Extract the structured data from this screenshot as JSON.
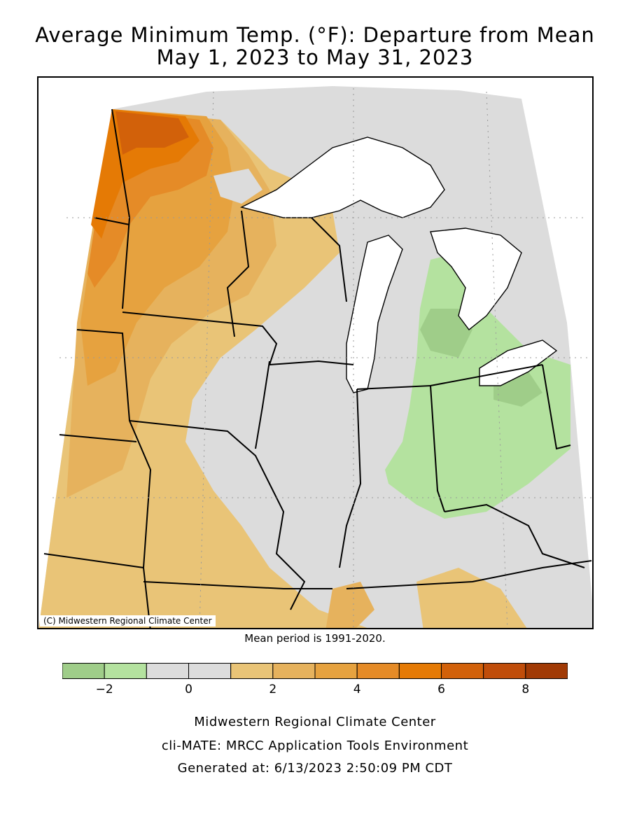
{
  "title_line1": "Average Minimum Temp. (°F): Departure from Mean",
  "title_line2": "May 1, 2023 to May 31, 2023",
  "copyright": "(C) Midwestern Regional Climate Center",
  "mean_period": "Mean period is 1991-2020.",
  "legend": {
    "bins": [
      {
        "from": -3,
        "to": -2,
        "color": "#9fcd89"
      },
      {
        "from": -2,
        "to": -1,
        "color": "#b4e29f"
      },
      {
        "from": -1,
        "to": 0,
        "color": "#dcdcdc"
      },
      {
        "from": 0,
        "to": 1,
        "color": "#dcdcdc"
      },
      {
        "from": 1,
        "to": 2,
        "color": "#e9c477"
      },
      {
        "from": 2,
        "to": 3,
        "color": "#e6b25d"
      },
      {
        "from": 3,
        "to": 4,
        "color": "#e6a23f"
      },
      {
        "from": 4,
        "to": 5,
        "color": "#e58b27"
      },
      {
        "from": 5,
        "to": 6,
        "color": "#e57a05"
      },
      {
        "from": 6,
        "to": 7,
        "color": "#d2610a"
      },
      {
        "from": 7,
        "to": 8,
        "color": "#c04d0a"
      },
      {
        "from": 8,
        "to": 9,
        "color": "#a13a05"
      }
    ],
    "ticks": [
      {
        "value": -2,
        "label": "−2"
      },
      {
        "value": 0,
        "label": "0"
      },
      {
        "value": 2,
        "label": "2"
      },
      {
        "value": 4,
        "label": "4"
      },
      {
        "value": 6,
        "label": "6"
      },
      {
        "value": 8,
        "label": "8"
      }
    ]
  },
  "footer": {
    "line1": "Midwestern Regional Climate Center",
    "line2": "cli-MATE: MRCC Application Tools Environment",
    "line3": "Generated at: 6/13/2023 2:50:09 PM CDT"
  }
}
